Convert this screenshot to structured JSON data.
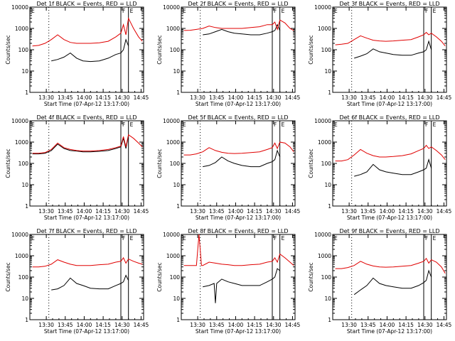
{
  "figure": {
    "title_template": "Det {det} BLACK = Events, RED = LLD",
    "xlabel": "Start Time (07-Apr-12 13:17:00)",
    "ylabel": "Counts/sec"
  },
  "chart_data": [
    {
      "type": "line",
      "title": "Det 1f BLACK = Events, RED = LLD",
      "det": "1f",
      "xlabel": "Start Time (07-Apr-12 13:17:00)",
      "ylabel": "Counts/sec",
      "x_ticks": [
        "13:30",
        "13:45",
        "14:00",
        "14:15",
        "14:30",
        "14:45"
      ],
      "y_ticks": [
        "1",
        "10",
        "100",
        "1000",
        "10000"
      ],
      "ylim": [
        1,
        10000
      ],
      "xlim_min_after_start": [
        0,
        90
      ],
      "y_scale": "log",
      "marker_lines_min": [
        15,
        72,
        78
      ],
      "legend_letters": [
        "F",
        "E"
      ],
      "series": [
        {
          "name": "BLACK",
          "x": [
            17,
            22,
            27,
            32,
            37,
            42,
            48,
            55,
            62,
            68,
            72,
            74,
            76,
            78
          ],
          "y": [
            30,
            35,
            45,
            70,
            40,
            30,
            28,
            30,
            40,
            60,
            70,
            100,
            300,
            150
          ]
        },
        {
          "name": "RED",
          "x": [
            2,
            7,
            12,
            17,
            22,
            27,
            32,
            37,
            42,
            48,
            55,
            62,
            68,
            72,
            74,
            76,
            78,
            82,
            86,
            89
          ],
          "y": [
            150,
            160,
            200,
            300,
            500,
            300,
            220,
            200,
            200,
            200,
            210,
            250,
            400,
            600,
            1500,
            500,
            3000,
            1000,
            400,
            250
          ]
        }
      ]
    },
    {
      "type": "line",
      "title": "Det 2f BLACK = Events, RED = LLD",
      "det": "2f",
      "xlabel": "Start Time (07-Apr-12 13:17:00)",
      "ylabel": "Counts/sec",
      "x_ticks": [
        "13:30",
        "13:45",
        "14:00",
        "14:15",
        "14:30",
        "14:45"
      ],
      "y_ticks": [
        "1",
        "10",
        "100",
        "1000",
        "10000"
      ],
      "ylim": [
        1,
        10000
      ],
      "xlim_min_after_start": [
        0,
        90
      ],
      "y_scale": "log",
      "marker_lines_min": [
        15,
        72,
        78
      ],
      "legend_letters": [
        "F",
        "E"
      ],
      "series": [
        {
          "name": "BLACK",
          "x": [
            17,
            22,
            27,
            32,
            37,
            42,
            48,
            55,
            62,
            68,
            72,
            74,
            76,
            78
          ],
          "y": [
            500,
            550,
            700,
            900,
            700,
            600,
            550,
            500,
            500,
            600,
            700,
            800,
            1500,
            800
          ]
        },
        {
          "name": "RED",
          "x": [
            2,
            7,
            12,
            17,
            22,
            27,
            32,
            37,
            42,
            48,
            55,
            62,
            68,
            72,
            74,
            76,
            78,
            82,
            86,
            89
          ],
          "y": [
            800,
            820,
            900,
            1000,
            1300,
            1100,
            1000,
            1000,
            1000,
            1000,
            1100,
            1200,
            1500,
            1500,
            2000,
            900,
            2500,
            1800,
            1000,
            800
          ]
        }
      ]
    },
    {
      "type": "line",
      "title": "Det 3f BLACK = Events, RED = LLD",
      "det": "3f",
      "xlabel": "Start Time (07-Apr-12 13:17:00)",
      "ylabel": "Counts/sec",
      "x_ticks": [
        "13:30",
        "13:45",
        "14:00",
        "14:15",
        "14:30",
        "14:45"
      ],
      "y_ticks": [
        "1",
        "10",
        "100",
        "1000",
        "10000"
      ],
      "ylim": [
        1,
        10000
      ],
      "xlim_min_after_start": [
        0,
        90
      ],
      "y_scale": "log",
      "marker_lines_min": [
        15,
        72,
        78
      ],
      "legend_letters": [
        "F",
        "E"
      ],
      "series": [
        {
          "name": "BLACK",
          "x": [
            17,
            22,
            27,
            32,
            37,
            42,
            48,
            55,
            62,
            68,
            72,
            74,
            76,
            78
          ],
          "y": [
            40,
            50,
            65,
            110,
            80,
            70,
            60,
            55,
            55,
            70,
            80,
            100,
            250,
            100
          ]
        },
        {
          "name": "RED",
          "x": [
            2,
            7,
            12,
            17,
            22,
            27,
            32,
            37,
            42,
            48,
            55,
            62,
            68,
            72,
            74,
            76,
            78,
            82,
            86,
            89
          ],
          "y": [
            170,
            180,
            200,
            300,
            450,
            350,
            280,
            260,
            250,
            260,
            280,
            300,
            400,
            500,
            650,
            500,
            600,
            400,
            250,
            150
          ]
        }
      ]
    },
    {
      "type": "line",
      "title": "Det 4f BLACK = Events, RED = LLD",
      "det": "4f",
      "xlabel": "Start Time (07-Apr-12 13:17:00)",
      "ylabel": "Counts/sec",
      "x_ticks": [
        "13:30",
        "13:45",
        "14:00",
        "14:15",
        "14:30",
        "14:45"
      ],
      "y_ticks": [
        "1",
        "10",
        "100",
        "1000",
        "10000"
      ],
      "ylim": [
        1,
        10000
      ],
      "xlim_min_after_start": [
        0,
        90
      ],
      "y_scale": "log",
      "marker_lines_min": [
        15,
        72,
        78
      ],
      "legend_letters": [
        "F",
        "E"
      ],
      "series": [
        {
          "name": "BLACK",
          "x": [
            2,
            7,
            12,
            17,
            22,
            27,
            32,
            37,
            42,
            48,
            55,
            62,
            68,
            72,
            74,
            76,
            78
          ],
          "y": [
            280,
            280,
            300,
            400,
            800,
            500,
            400,
            380,
            350,
            350,
            370,
            400,
            500,
            600,
            1500,
            500,
            2000
          ]
        },
        {
          "name": "RED",
          "x": [
            2,
            7,
            12,
            17,
            22,
            27,
            32,
            37,
            42,
            48,
            55,
            62,
            68,
            72,
            74,
            76,
            78,
            82,
            86,
            89
          ],
          "y": [
            300,
            300,
            320,
            450,
            900,
            550,
            450,
            400,
            380,
            380,
            400,
            450,
            550,
            650,
            1800,
            600,
            2200,
            1500,
            900,
            600
          ]
        }
      ]
    },
    {
      "type": "line",
      "title": "Det 5f BLACK = Events, RED = LLD",
      "det": "5f",
      "xlabel": "Start Time (07-Apr-12 13:17:00)",
      "ylabel": "Counts/sec",
      "x_ticks": [
        "13:30",
        "13:45",
        "14:00",
        "14:15",
        "14:30",
        "14:45"
      ],
      "y_ticks": [
        "1",
        "10",
        "100",
        "1000",
        "10000"
      ],
      "ylim": [
        1,
        10000
      ],
      "xlim_min_after_start": [
        0,
        90
      ],
      "y_scale": "log",
      "marker_lines_min": [
        15,
        72,
        78
      ],
      "legend_letters": [
        "F",
        "E"
      ],
      "series": [
        {
          "name": "BLACK",
          "x": [
            17,
            22,
            27,
            32,
            37,
            42,
            48,
            55,
            62,
            68,
            72,
            74,
            76,
            78
          ],
          "y": [
            70,
            80,
            110,
            200,
            130,
            100,
            80,
            70,
            70,
            100,
            120,
            150,
            400,
            200
          ]
        },
        {
          "name": "RED",
          "x": [
            2,
            7,
            12,
            17,
            22,
            27,
            32,
            37,
            42,
            48,
            55,
            62,
            68,
            72,
            74,
            76,
            78,
            82,
            86,
            89
          ],
          "y": [
            250,
            250,
            280,
            350,
            550,
            400,
            330,
            300,
            290,
            300,
            320,
            350,
            450,
            550,
            900,
            500,
            1000,
            900,
            600,
            350
          ]
        }
      ]
    },
    {
      "type": "line",
      "title": "Det 6f BLACK = Events, RED = LLD",
      "det": "6f",
      "xlabel": "Start Time (07-Apr-12 13:17:00)",
      "ylabel": "Counts/sec",
      "x_ticks": [
        "13:30",
        "13:45",
        "14:00",
        "14:15",
        "14:30",
        "14:45"
      ],
      "y_ticks": [
        "1",
        "10",
        "100",
        "1000",
        "10000"
      ],
      "ylim": [
        1,
        10000
      ],
      "xlim_min_after_start": [
        0,
        90
      ],
      "y_scale": "log",
      "marker_lines_min": [
        15,
        72,
        78
      ],
      "legend_letters": [
        "F",
        "E"
      ],
      "series": [
        {
          "name": "BLACK",
          "x": [
            17,
            22,
            27,
            32,
            37,
            42,
            48,
            55,
            62,
            68,
            72,
            74,
            76,
            78
          ],
          "y": [
            25,
            30,
            40,
            90,
            50,
            40,
            35,
            30,
            30,
            40,
            50,
            60,
            150,
            60
          ]
        },
        {
          "name": "RED",
          "x": [
            2,
            7,
            12,
            17,
            22,
            27,
            32,
            37,
            42,
            48,
            55,
            62,
            68,
            72,
            74,
            76,
            78,
            82,
            86,
            89
          ],
          "y": [
            130,
            130,
            150,
            250,
            450,
            300,
            230,
            200,
            200,
            210,
            230,
            280,
            400,
            500,
            700,
            500,
            600,
            400,
            250,
            150
          ]
        }
      ]
    },
    {
      "type": "line",
      "title": "Det 7f BLACK = Events, RED = LLD",
      "det": "7f",
      "xlabel": "Start Time (07-Apr-12 13:17:00)",
      "ylabel": "Counts/sec",
      "x_ticks": [
        "13:30",
        "13:45",
        "14:00",
        "14:15",
        "14:30",
        "14:45"
      ],
      "y_ticks": [
        "1",
        "10",
        "100",
        "1000",
        "10000"
      ],
      "ylim": [
        1,
        10000
      ],
      "xlim_min_after_start": [
        0,
        90
      ],
      "y_scale": "log",
      "marker_lines_min": [
        15,
        72,
        78
      ],
      "legend_letters": [
        "F",
        "E"
      ],
      "series": [
        {
          "name": "BLACK",
          "x": [
            17,
            22,
            27,
            32,
            37,
            42,
            48,
            55,
            62,
            68,
            72,
            74,
            76,
            78
          ],
          "y": [
            25,
            28,
            40,
            90,
            50,
            40,
            30,
            28,
            28,
            40,
            50,
            60,
            120,
            70
          ]
        },
        {
          "name": "RED",
          "x": [
            2,
            7,
            12,
            17,
            22,
            27,
            32,
            37,
            42,
            48,
            55,
            62,
            68,
            72,
            74,
            76,
            78,
            82,
            86,
            89
          ],
          "y": [
            300,
            300,
            320,
            400,
            650,
            500,
            400,
            350,
            350,
            350,
            380,
            400,
            500,
            550,
            800,
            450,
            700,
            550,
            450,
            400
          ]
        }
      ]
    },
    {
      "type": "line",
      "title": "Det 8f BLACK = Events, RED = LLD",
      "det": "8f",
      "xlabel": "Start Time (07-Apr-12 13:17:00)",
      "ylabel": "Counts/sec",
      "x_ticks": [
        "13:30",
        "13:45",
        "14:00",
        "14:15",
        "14:30",
        "14:45"
      ],
      "y_ticks": [
        "1",
        "10",
        "100",
        "1000",
        "10000"
      ],
      "ylim": [
        1,
        10000
      ],
      "xlim_min_after_start": [
        0,
        90
      ],
      "y_scale": "log",
      "marker_lines_min": [
        15,
        72,
        78
      ],
      "legend_letters": [
        "F",
        "E"
      ],
      "series": [
        {
          "name": "BLACK",
          "x": [
            17,
            22,
            26,
            27,
            28,
            32,
            37,
            42,
            48,
            55,
            62,
            68,
            72,
            74,
            76,
            78
          ],
          "y": [
            35,
            40,
            50,
            6,
            50,
            80,
            60,
            50,
            40,
            40,
            40,
            60,
            80,
            100,
            250,
            200
          ]
        },
        {
          "name": "RED",
          "x": [
            2,
            7,
            12,
            14,
            16,
            17,
            22,
            27,
            32,
            37,
            42,
            48,
            55,
            62,
            68,
            72,
            74,
            76,
            78,
            82,
            86,
            89
          ],
          "y": [
            350,
            350,
            350,
            10000,
            350,
            350,
            500,
            450,
            400,
            380,
            350,
            350,
            380,
            400,
            500,
            550,
            800,
            500,
            1200,
            800,
            500,
            350
          ]
        }
      ]
    },
    {
      "type": "line",
      "title": "Det 9f BLACK = Events, RED = LLD",
      "det": "9f",
      "xlabel": "Start Time (07-Apr-12 13:17:00)",
      "ylabel": "Counts/sec",
      "x_ticks": [
        "13:30",
        "13:45",
        "14:00",
        "14:15",
        "14:30",
        "14:45"
      ],
      "y_ticks": [
        "1",
        "10",
        "100",
        "1000",
        "10000"
      ],
      "ylim": [
        1,
        10000
      ],
      "xlim_min_after_start": [
        0,
        90
      ],
      "y_scale": "log",
      "marker_lines_min": [
        15,
        72,
        78
      ],
      "legend_letters": [
        "F",
        "E"
      ],
      "series": [
        {
          "name": "BLACK",
          "x": [
            17,
            22,
            27,
            32,
            37,
            42,
            48,
            55,
            62,
            68,
            72,
            74,
            76,
            78
          ],
          "y": [
            15,
            25,
            40,
            90,
            50,
            40,
            35,
            30,
            30,
            40,
            55,
            70,
            200,
            100
          ]
        },
        {
          "name": "RED",
          "x": [
            2,
            7,
            12,
            17,
            22,
            27,
            32,
            37,
            42,
            48,
            55,
            62,
            68,
            72,
            74,
            76,
            78,
            82,
            86,
            89
          ],
          "y": [
            250,
            250,
            280,
            350,
            550,
            400,
            330,
            300,
            290,
            300,
            320,
            350,
            450,
            550,
            750,
            450,
            650,
            500,
            300,
            150
          ]
        }
      ]
    }
  ]
}
